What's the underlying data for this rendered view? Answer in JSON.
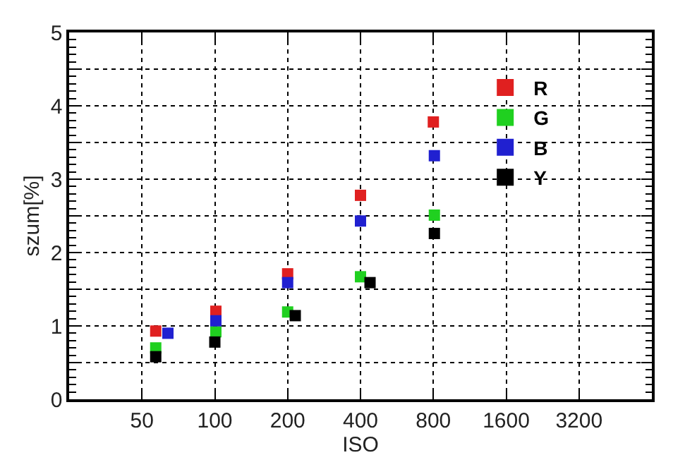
{
  "chart_data": {
    "type": "scatter",
    "xlabel": "ISO",
    "ylabel": "szum[%]",
    "log": "x",
    "marker": "square",
    "grid": true,
    "legend": "top right",
    "xlim": [
      25,
      6400
    ],
    "xticks": [
      50,
      100,
      200,
      400,
      800,
      1600,
      3200
    ],
    "ylim": [
      0,
      5
    ],
    "yticks": [
      0,
      {
        "value": 0.5,
        "label": null
      },
      1,
      {
        "value": 1.5,
        "label": null
      },
      2,
      {
        "value": 2.5,
        "label": null
      },
      3,
      {
        "value": 3.5,
        "label": null
      },
      4,
      {
        "value": 4.5,
        "label": null
      },
      5
    ],
    "series": [
      {
        "name": "R",
        "color": "#e02020",
        "x": [
          57,
          101,
          200,
          400,
          800
        ],
        "values": [
          0.93,
          1.2,
          1.71,
          2.78,
          3.78
        ]
      },
      {
        "name": "G",
        "color": "#20d020",
        "x": [
          57,
          101,
          200,
          400,
          808
        ],
        "values": [
          0.7,
          0.92,
          1.19,
          1.67,
          2.51
        ]
      },
      {
        "name": "B",
        "color": "#2020d0",
        "x": [
          64,
          101,
          200,
          400,
          808
        ],
        "values": [
          0.9,
          1.07,
          1.59,
          2.43,
          3.32
        ]
      },
      {
        "name": "Y",
        "color": "#000000",
        "x": [
          57,
          100,
          215,
          438,
          808
        ],
        "values": [
          0.58,
          0.78,
          1.14,
          1.59,
          2.26
        ]
      }
    ]
  }
}
